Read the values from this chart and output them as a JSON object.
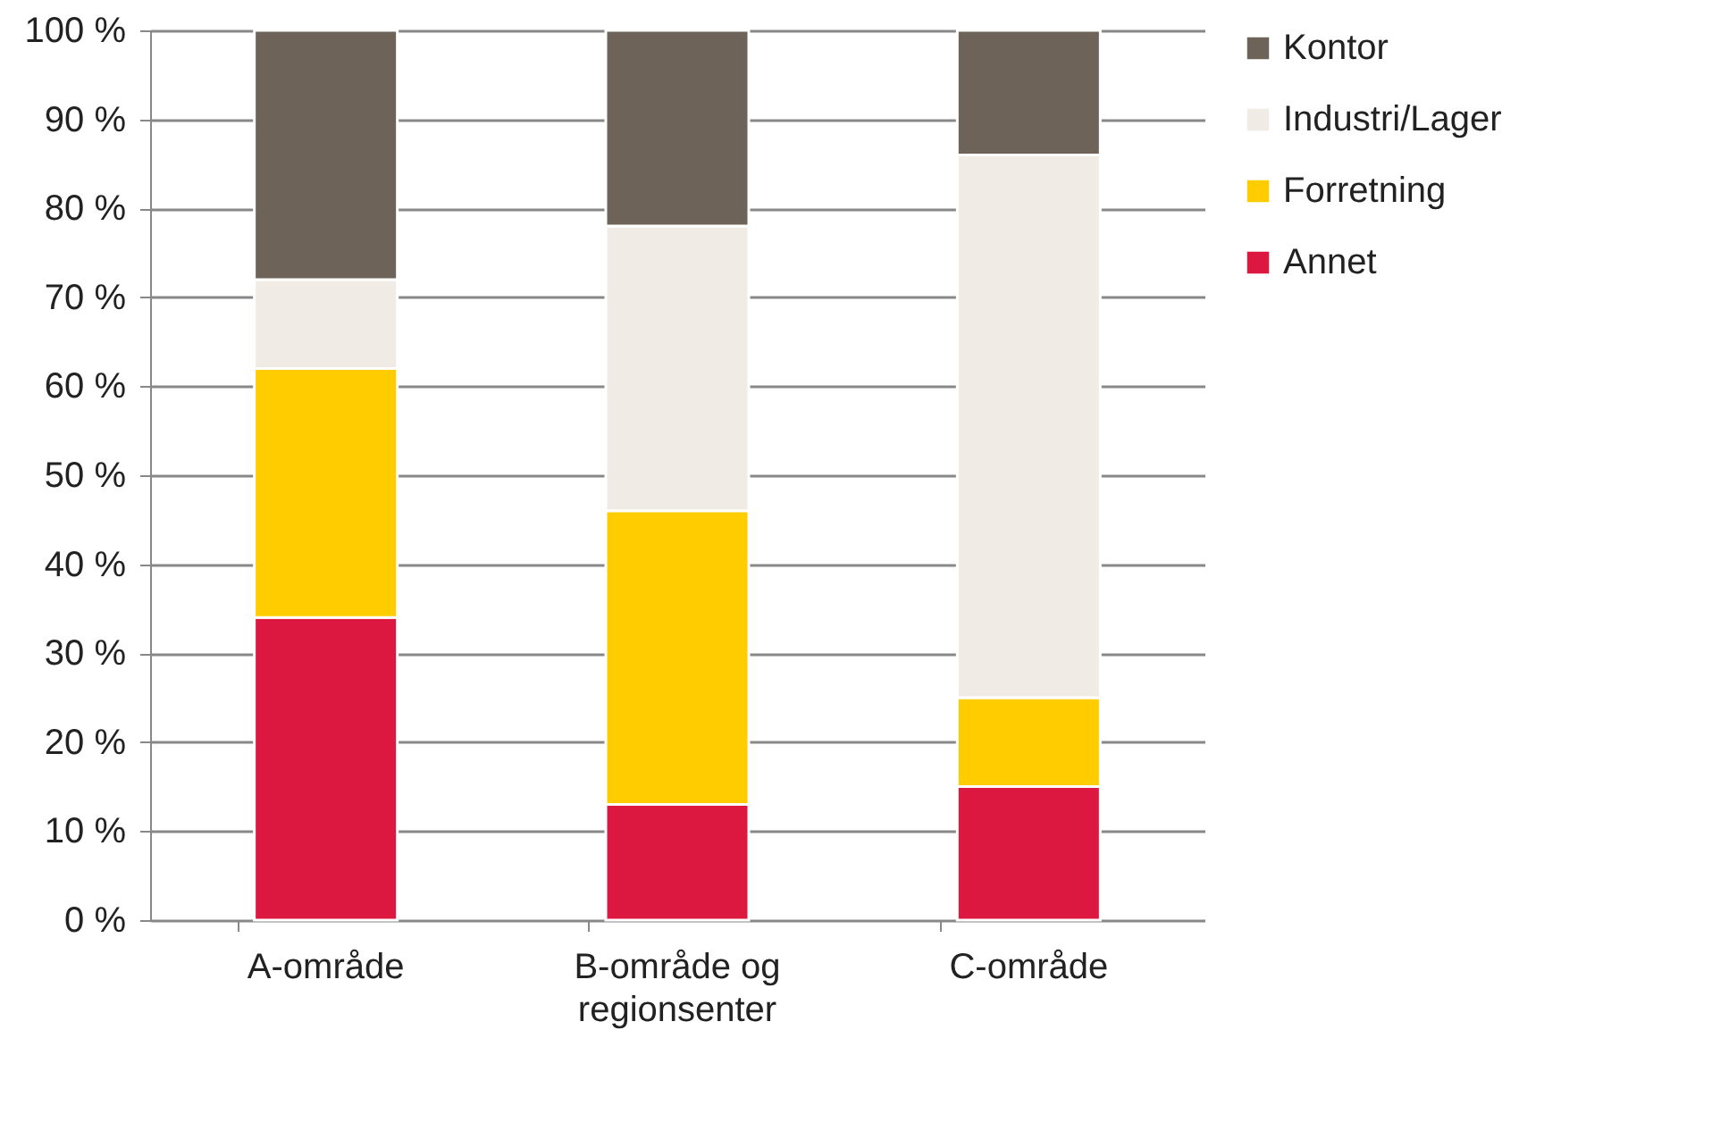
{
  "chart_data": {
    "type": "bar",
    "stacked": true,
    "categories": [
      "A-område",
      "B-område og regionsenter",
      "C-område"
    ],
    "series": [
      {
        "name": "Annet",
        "color": "#dc1740",
        "values": [
          34,
          13,
          15
        ]
      },
      {
        "name": "Forretning",
        "color": "#ffcc00",
        "values": [
          28,
          33,
          10
        ]
      },
      {
        "name": "Industri/Lager",
        "color": "#f0ebe4",
        "values": [
          10,
          32,
          61
        ]
      },
      {
        "name": "Kontor",
        "color": "#6e6358",
        "values": [
          28,
          22,
          14
        ]
      }
    ],
    "ylim": [
      0,
      100
    ],
    "yticks": [
      {
        "value": 0,
        "label": "0 %"
      },
      {
        "value": 10,
        "label": "10 %"
      },
      {
        "value": 20,
        "label": "20 %"
      },
      {
        "value": 30,
        "label": "30 %"
      },
      {
        "value": 40,
        "label": "40 %"
      },
      {
        "value": 50,
        "label": "50 %"
      },
      {
        "value": 60,
        "label": "60 %"
      },
      {
        "value": 70,
        "label": "70 %"
      },
      {
        "value": 80,
        "label": "80 %"
      },
      {
        "value": 90,
        "label": "90 %"
      },
      {
        "value": 100,
        "label": "100 %"
      }
    ],
    "grid": "y",
    "legend": "right"
  }
}
